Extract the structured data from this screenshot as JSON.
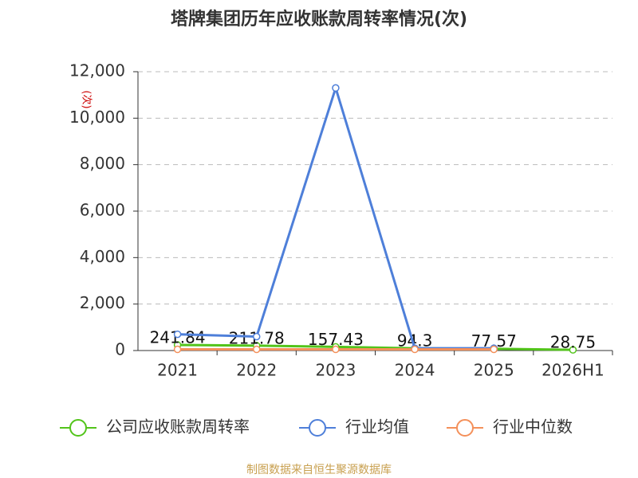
{
  "chart_data": {
    "type": "line",
    "title": "塔牌集团历年应收账款周转率情况(次)",
    "y_label": "(次)",
    "categories": [
      "2021",
      "2022",
      "2023",
      "2024",
      "2025",
      "2026H1"
    ],
    "series": [
      {
        "name": "公司应收账款周转率",
        "color": "#52c41a",
        "values": [
          241.84,
          211.78,
          157.43,
          94.3,
          77.57,
          28.75
        ],
        "show_labels": true
      },
      {
        "name": "行业均值",
        "color": "#4e7fd9",
        "values": [
          700,
          600,
          11300,
          100,
          100,
          null
        ]
      },
      {
        "name": "行业中位数",
        "color": "#f4905a",
        "values": [
          50,
          50,
          50,
          50,
          50,
          null
        ]
      }
    ],
    "ylim": [
      0,
      12000
    ],
    "yticks": [
      0,
      {
        "value": 2000,
        "label": "2,000"
      },
      {
        "value": 4000,
        "label": "4,000"
      },
      {
        "value": 6000,
        "label": "6,000"
      },
      {
        "value": 8000,
        "label": "8,000"
      },
      {
        "value": 10000,
        "label": "10,000"
      },
      {
        "value": 12000,
        "label": "12,000"
      }
    ],
    "grid": true,
    "source": "制图数据来自恒生聚源数据库"
  }
}
